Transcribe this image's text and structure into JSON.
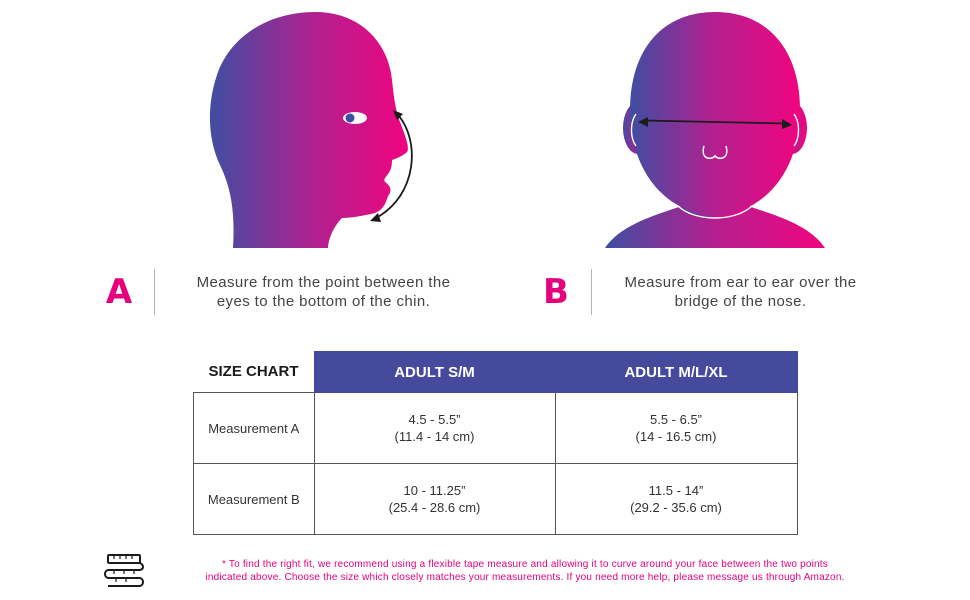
{
  "colors": {
    "accent_pink": "#e6007e",
    "header_blue": "#454a9c",
    "gradient_start": "#3f4ea3",
    "gradient_end": "#f0047f"
  },
  "illustrations": {
    "side_view_icon": "head-profile-icon",
    "front_view_icon": "head-front-icon"
  },
  "instructions": {
    "a": {
      "letter": "A",
      "line1": "Measure from the point between the",
      "line2": "eyes to the bottom of the chin."
    },
    "b": {
      "letter": "B",
      "line1": "Measure from ear to ear over the",
      "line2": "bridge of the nose."
    }
  },
  "size_chart": {
    "title": "SIZE CHART",
    "columns": [
      "ADULT S/M",
      "ADULT M/L/XL"
    ],
    "rows": [
      {
        "label": "Measurement A",
        "values": [
          [
            "4.5 - 5.5”",
            "(11.4 - 14 cm)"
          ],
          [
            "5.5 - 6.5”",
            "(14 - 16.5 cm)"
          ]
        ]
      },
      {
        "label": "Measurement B",
        "values": [
          [
            "10 - 11.25”",
            "(25.4 - 28.6 cm)"
          ],
          [
            "11.5 - 14”",
            "(29.2 - 35.6 cm)"
          ]
        ]
      }
    ]
  },
  "footnote": {
    "icon": "tape-measure-icon",
    "line1": "* To find the right fit, we recommend using a flexible tape measure and allowing it to curve around your face between the two points",
    "line2": "indicated above. Choose the size which closely matches your measurements. If you need more help, please message us through Amazon."
  }
}
